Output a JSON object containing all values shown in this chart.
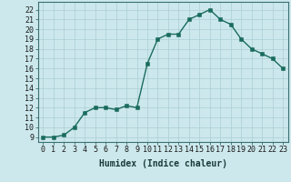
{
  "x": [
    0,
    1,
    2,
    3,
    4,
    5,
    6,
    7,
    8,
    9,
    10,
    11,
    12,
    13,
    14,
    15,
    16,
    17,
    18,
    19,
    20,
    21,
    22,
    23
  ],
  "y": [
    9,
    9,
    9.2,
    10,
    11.5,
    12,
    12,
    11.8,
    12.2,
    12,
    16.5,
    19,
    19.5,
    19.5,
    21,
    21.5,
    22,
    21,
    20.5,
    19,
    18,
    17.5,
    17,
    16
  ],
  "line_color": "#1a6b5e",
  "marker_color": "#1a6b5e",
  "bg_color": "#cce8ec",
  "grid_color": "#aacdd4",
  "xlabel": "Humidex (Indice chaleur)",
  "xlim": [
    -0.5,
    23.5
  ],
  "ylim": [
    8.5,
    22.8
  ],
  "xticks": [
    0,
    1,
    2,
    3,
    4,
    5,
    6,
    7,
    8,
    9,
    10,
    11,
    12,
    13,
    14,
    15,
    16,
    17,
    18,
    19,
    20,
    21,
    22,
    23
  ],
  "yticks": [
    9,
    10,
    11,
    12,
    13,
    14,
    15,
    16,
    17,
    18,
    19,
    20,
    21,
    22
  ],
  "xlabel_fontsize": 7,
  "tick_fontsize": 6,
  "linewidth": 1.0,
  "markersize": 2.5
}
